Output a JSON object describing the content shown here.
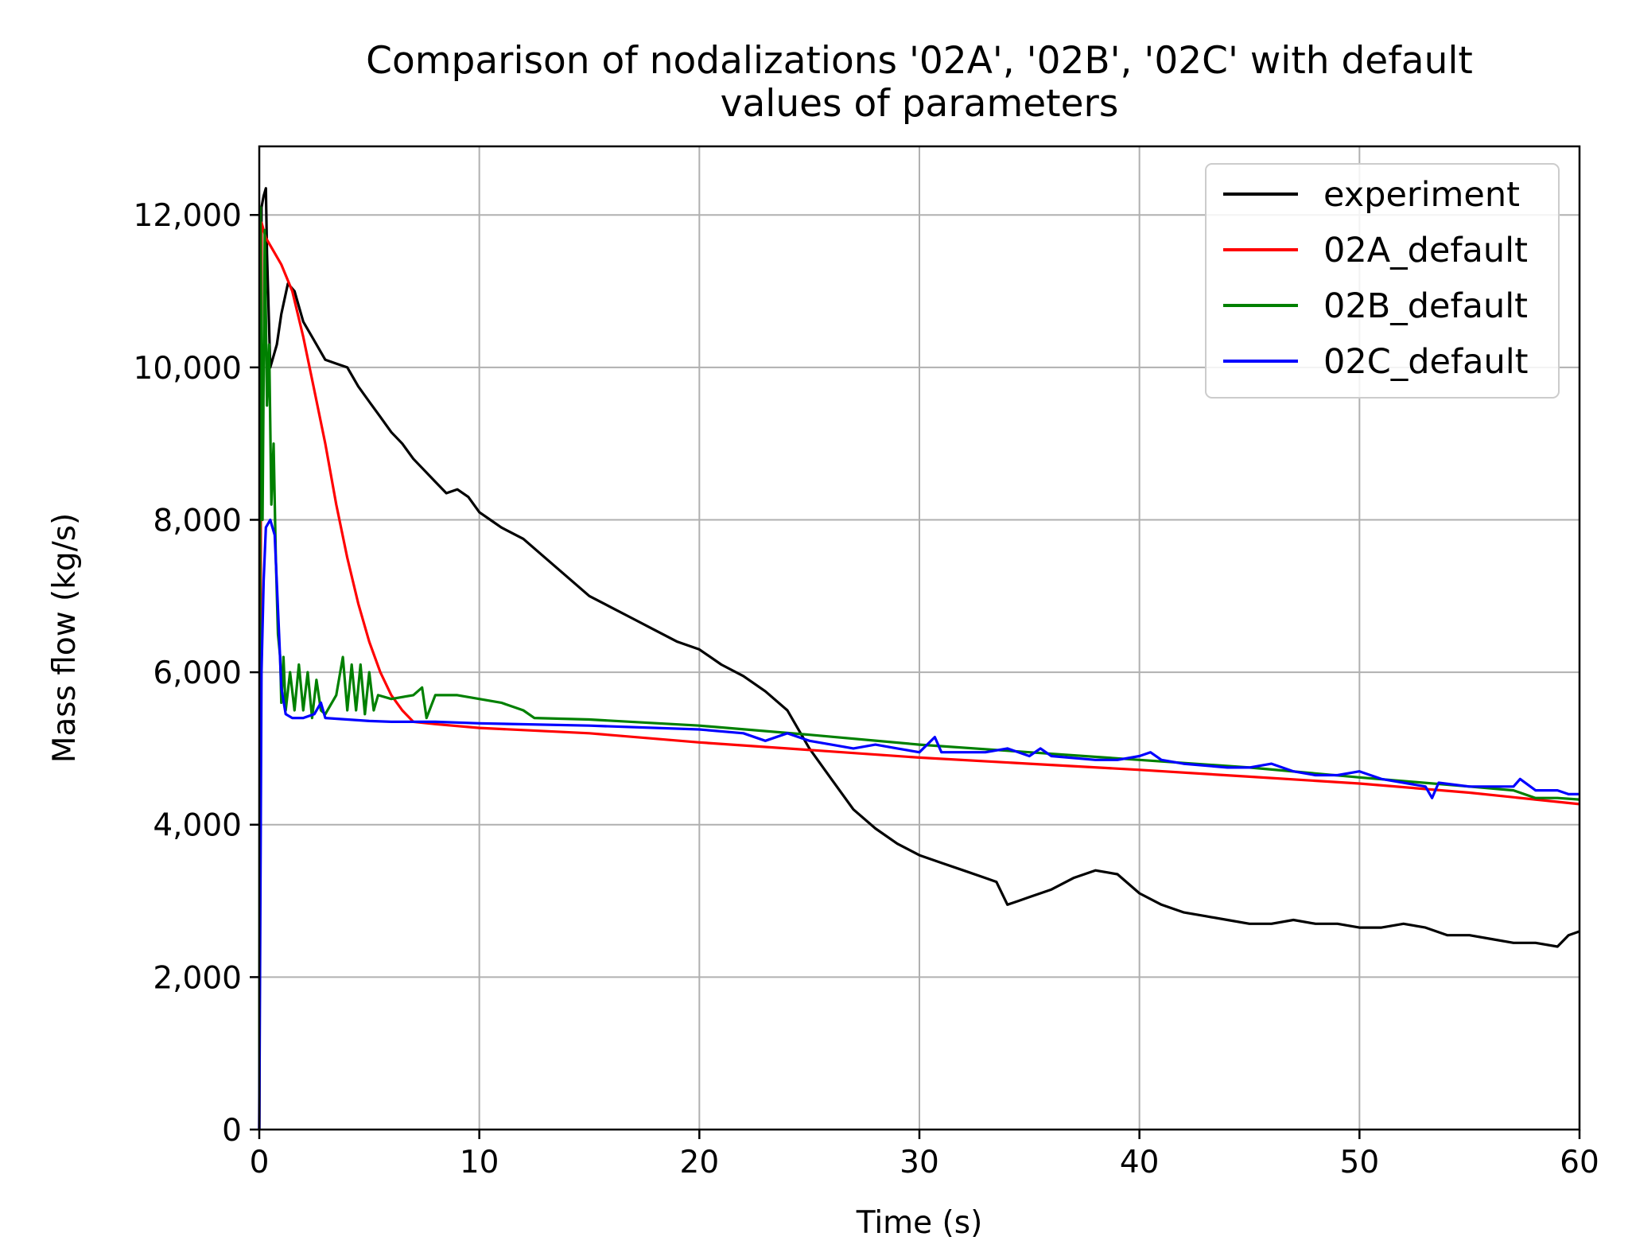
{
  "chart_data": {
    "type": "line",
    "title_lines": [
      "Comparison of nodalizations '02A', '02B', '02C' with default",
      "values of parameters"
    ],
    "xlabel": "Time (s)",
    "ylabel": "Mass flow (kg/s)",
    "xlim": [
      0,
      60
    ],
    "ylim": [
      0,
      12900
    ],
    "xticks": [
      0,
      10,
      20,
      30,
      40,
      50,
      60
    ],
    "xtick_labels": [
      "0",
      "10",
      "20",
      "30",
      "40",
      "50",
      "60"
    ],
    "yticks": [
      0,
      2000,
      4000,
      6000,
      8000,
      10000,
      12000
    ],
    "ytick_labels": [
      "0",
      "2,000",
      "4,000",
      "6,000",
      "8,000",
      "10,000",
      "12,000"
    ],
    "grid": true,
    "legend_position": "top-right",
    "series": [
      {
        "name": "experiment",
        "color": "#000000",
        "points": [
          [
            0,
            0
          ],
          [
            0.1,
            12100
          ],
          [
            0.2,
            12250
          ],
          [
            0.3,
            12350
          ],
          [
            0.35,
            11500
          ],
          [
            0.5,
            10000
          ],
          [
            0.8,
            10300
          ],
          [
            1.0,
            10700
          ],
          [
            1.3,
            11100
          ],
          [
            1.6,
            11000
          ],
          [
            2.0,
            10600
          ],
          [
            2.4,
            10400
          ],
          [
            3.0,
            10100
          ],
          [
            3.5,
            10050
          ],
          [
            4.0,
            10000
          ],
          [
            4.5,
            9750
          ],
          [
            5.0,
            9550
          ],
          [
            5.5,
            9350
          ],
          [
            6.0,
            9150
          ],
          [
            6.5,
            9000
          ],
          [
            7.0,
            8800
          ],
          [
            7.5,
            8650
          ],
          [
            8.0,
            8500
          ],
          [
            8.5,
            8350
          ],
          [
            9.0,
            8400
          ],
          [
            9.5,
            8300
          ],
          [
            10.0,
            8100
          ],
          [
            10.5,
            8000
          ],
          [
            11.0,
            7900
          ],
          [
            12.0,
            7750
          ],
          [
            13.0,
            7500
          ],
          [
            14.0,
            7250
          ],
          [
            15.0,
            7000
          ],
          [
            16.0,
            6850
          ],
          [
            17.0,
            6700
          ],
          [
            18.0,
            6550
          ],
          [
            19.0,
            6400
          ],
          [
            20.0,
            6300
          ],
          [
            21.0,
            6100
          ],
          [
            22.0,
            5950
          ],
          [
            23.0,
            5750
          ],
          [
            24.0,
            5500
          ],
          [
            25.0,
            5000
          ],
          [
            26.0,
            4600
          ],
          [
            27.0,
            4200
          ],
          [
            28.0,
            3950
          ],
          [
            29.0,
            3750
          ],
          [
            30.0,
            3600
          ],
          [
            31.0,
            3500
          ],
          [
            32.0,
            3400
          ],
          [
            33.0,
            3300
          ],
          [
            33.5,
            3250
          ],
          [
            34.0,
            2950
          ],
          [
            34.5,
            3000
          ],
          [
            35.0,
            3050
          ],
          [
            36.0,
            3150
          ],
          [
            37.0,
            3300
          ],
          [
            38.0,
            3400
          ],
          [
            39.0,
            3350
          ],
          [
            40.0,
            3100
          ],
          [
            41.0,
            2950
          ],
          [
            42.0,
            2850
          ],
          [
            43.0,
            2800
          ],
          [
            44.0,
            2750
          ],
          [
            45.0,
            2700
          ],
          [
            46.0,
            2700
          ],
          [
            47.0,
            2750
          ],
          [
            48.0,
            2700
          ],
          [
            49.0,
            2700
          ],
          [
            50.0,
            2650
          ],
          [
            51.0,
            2650
          ],
          [
            52.0,
            2700
          ],
          [
            53.0,
            2650
          ],
          [
            54.0,
            2550
          ],
          [
            55.0,
            2550
          ],
          [
            56.0,
            2500
          ],
          [
            57.0,
            2450
          ],
          [
            58.0,
            2450
          ],
          [
            59.0,
            2400
          ],
          [
            59.5,
            2550
          ],
          [
            60.0,
            2600
          ]
        ]
      },
      {
        "name": "02A_default",
        "color": "#ff0000",
        "points": [
          [
            0,
            0
          ],
          [
            0.1,
            11900
          ],
          [
            0.3,
            11700
          ],
          [
            0.6,
            11550
          ],
          [
            1.0,
            11350
          ],
          [
            1.5,
            11000
          ],
          [
            2.0,
            10400
          ],
          [
            2.5,
            9700
          ],
          [
            3.0,
            9000
          ],
          [
            3.5,
            8200
          ],
          [
            4.0,
            7500
          ],
          [
            4.5,
            6900
          ],
          [
            5.0,
            6400
          ],
          [
            5.5,
            6000
          ],
          [
            6.0,
            5700
          ],
          [
            6.5,
            5500
          ],
          [
            7.0,
            5350
          ],
          [
            8.0,
            5320
          ],
          [
            10.0,
            5270
          ],
          [
            15.0,
            5200
          ],
          [
            20.0,
            5080
          ],
          [
            25.0,
            4980
          ],
          [
            30.0,
            4880
          ],
          [
            35.0,
            4800
          ],
          [
            40.0,
            4720
          ],
          [
            45.0,
            4630
          ],
          [
            50.0,
            4540
          ],
          [
            55.0,
            4420
          ],
          [
            60.0,
            4270
          ]
        ]
      },
      {
        "name": "02B_default",
        "color": "#008000",
        "points": [
          [
            0,
            0
          ],
          [
            0.05,
            12100
          ],
          [
            0.15,
            8000
          ],
          [
            0.25,
            11800
          ],
          [
            0.35,
            9500
          ],
          [
            0.45,
            10300
          ],
          [
            0.55,
            8200
          ],
          [
            0.65,
            9000
          ],
          [
            0.75,
            7500
          ],
          [
            0.85,
            6500
          ],
          [
            0.95,
            6200
          ],
          [
            1.0,
            5600
          ],
          [
            1.1,
            6200
          ],
          [
            1.2,
            5500
          ],
          [
            1.4,
            6000
          ],
          [
            1.6,
            5500
          ],
          [
            1.8,
            6100
          ],
          [
            2.0,
            5500
          ],
          [
            2.2,
            6000
          ],
          [
            2.4,
            5400
          ],
          [
            2.6,
            5900
          ],
          [
            2.8,
            5500
          ],
          [
            3.0,
            5450
          ],
          [
            3.5,
            5700
          ],
          [
            3.8,
            6200
          ],
          [
            4.0,
            5500
          ],
          [
            4.2,
            6100
          ],
          [
            4.4,
            5500
          ],
          [
            4.6,
            6100
          ],
          [
            4.8,
            5450
          ],
          [
            5.0,
            6000
          ],
          [
            5.2,
            5500
          ],
          [
            5.4,
            5700
          ],
          [
            6.0,
            5650
          ],
          [
            7.0,
            5700
          ],
          [
            7.4,
            5800
          ],
          [
            7.6,
            5400
          ],
          [
            8.0,
            5700
          ],
          [
            9.0,
            5700
          ],
          [
            10.0,
            5650
          ],
          [
            11.0,
            5600
          ],
          [
            12.0,
            5500
          ],
          [
            12.5,
            5400
          ],
          [
            15.0,
            5380
          ],
          [
            20.0,
            5300
          ],
          [
            25.0,
            5180
          ],
          [
            30.0,
            5050
          ],
          [
            35.0,
            4950
          ],
          [
            40.0,
            4850
          ],
          [
            45.0,
            4750
          ],
          [
            50.0,
            4620
          ],
          [
            55.0,
            4500
          ],
          [
            57.0,
            4450
          ],
          [
            58.0,
            4350
          ],
          [
            59.0,
            4350
          ],
          [
            60.0,
            4330
          ]
        ]
      },
      {
        "name": "02C_default",
        "color": "#0000ff",
        "points": [
          [
            0,
            0
          ],
          [
            0.1,
            6000
          ],
          [
            0.2,
            7200
          ],
          [
            0.3,
            7900
          ],
          [
            0.5,
            8000
          ],
          [
            0.7,
            7800
          ],
          [
            0.9,
            6500
          ],
          [
            1.0,
            5800
          ],
          [
            1.2,
            5450
          ],
          [
            1.5,
            5400
          ],
          [
            2.0,
            5400
          ],
          [
            2.5,
            5450
          ],
          [
            2.8,
            5600
          ],
          [
            3.0,
            5400
          ],
          [
            4.0,
            5380
          ],
          [
            5.0,
            5360
          ],
          [
            6.0,
            5350
          ],
          [
            8.0,
            5350
          ],
          [
            10.0,
            5330
          ],
          [
            15.0,
            5300
          ],
          [
            20.0,
            5250
          ],
          [
            22.0,
            5200
          ],
          [
            23.0,
            5100
          ],
          [
            24.0,
            5200
          ],
          [
            25.0,
            5100
          ],
          [
            26.0,
            5050
          ],
          [
            27.0,
            5000
          ],
          [
            28.0,
            5050
          ],
          [
            29.0,
            5000
          ],
          [
            30.0,
            4950
          ],
          [
            30.7,
            5150
          ],
          [
            31.0,
            4950
          ],
          [
            33.0,
            4950
          ],
          [
            34.0,
            5000
          ],
          [
            35.0,
            4900
          ],
          [
            35.5,
            5000
          ],
          [
            36.0,
            4900
          ],
          [
            38.0,
            4850
          ],
          [
            39.0,
            4850
          ],
          [
            40.0,
            4900
          ],
          [
            40.5,
            4950
          ],
          [
            41.0,
            4850
          ],
          [
            42.0,
            4800
          ],
          [
            44.0,
            4750
          ],
          [
            45.0,
            4750
          ],
          [
            46.0,
            4800
          ],
          [
            47.0,
            4700
          ],
          [
            48.0,
            4650
          ],
          [
            49.0,
            4650
          ],
          [
            50.0,
            4700
          ],
          [
            51.0,
            4600
          ],
          [
            52.0,
            4550
          ],
          [
            53.0,
            4500
          ],
          [
            53.3,
            4350
          ],
          [
            53.6,
            4550
          ],
          [
            55.0,
            4500
          ],
          [
            56.0,
            4500
          ],
          [
            57.0,
            4500
          ],
          [
            57.3,
            4600
          ],
          [
            58.0,
            4450
          ],
          [
            59.0,
            4450
          ],
          [
            59.5,
            4400
          ],
          [
            60.0,
            4400
          ]
        ]
      }
    ]
  }
}
